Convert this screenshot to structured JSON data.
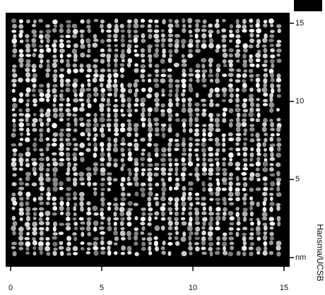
{
  "image": {
    "x_axis": {
      "xlim": [
        0,
        15
      ],
      "xticks": [
        0,
        5,
        10,
        15
      ]
    },
    "y_axis": {
      "ylim": [
        0,
        15
      ],
      "yticks": [
        15,
        10,
        5
      ],
      "unit": "nm"
    },
    "credit": "Hansma/UCSB"
  }
}
